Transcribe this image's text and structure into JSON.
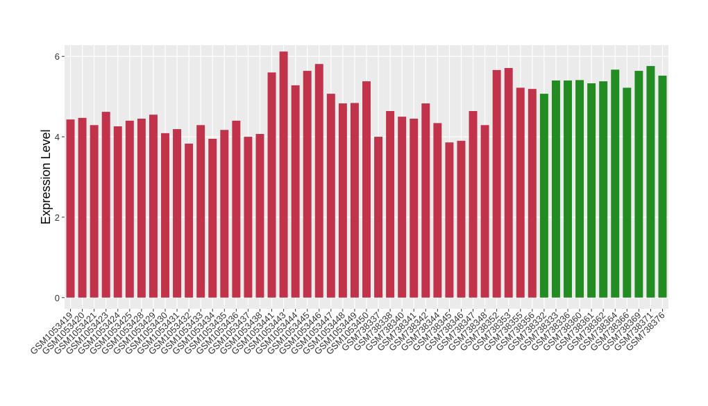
{
  "chart_data": {
    "type": "bar",
    "y_label": "Expression Level",
    "categories": [
      "GSM1053419",
      "GSM1053420",
      "GSM1053421",
      "GSM1053423",
      "GSM1053424",
      "GSM1053425",
      "GSM1053428",
      "GSM1053429",
      "GSM1053430",
      "GSM1053431",
      "GSM1053432",
      "GSM1053433",
      "GSM1053434",
      "GSM1053435",
      "GSM1053436",
      "GSM1053437",
      "GSM1053438",
      "GSM1053441",
      "GSM1053443",
      "GSM1053444",
      "GSM1053445",
      "GSM1053446",
      "GSM1053447",
      "GSM1053448",
      "GSM1053449",
      "GSM1053450",
      "GSM738337",
      "GSM738338",
      "GSM738340",
      "GSM738341",
      "GSM738342",
      "GSM738344",
      "GSM738345",
      "GSM738346",
      "GSM738347",
      "GSM738348",
      "GSM738352",
      "GSM738353",
      "GSM738355",
      "GSM738356",
      "GSM738332",
      "GSM738333",
      "GSM738336",
      "GSM738360",
      "GSM738361",
      "GSM738362",
      "GSM738364",
      "GSM738366",
      "GSM738369",
      "GSM738371",
      "GSM738376"
    ],
    "values": [
      4.43,
      4.47,
      4.29,
      4.62,
      4.26,
      4.4,
      4.45,
      4.55,
      4.09,
      4.19,
      3.83,
      4.29,
      3.95,
      4.17,
      4.4,
      4.0,
      4.07,
      5.6,
      6.12,
      5.28,
      5.64,
      5.81,
      5.07,
      4.83,
      4.84,
      5.38,
      4.0,
      4.64,
      4.5,
      4.45,
      4.83,
      4.34,
      3.86,
      3.9,
      4.64,
      4.29,
      5.66,
      5.71,
      5.22,
      5.19,
      5.07,
      5.4,
      5.4,
      5.41,
      5.33,
      5.38,
      5.67,
      5.22,
      5.64,
      5.76,
      5.52
    ],
    "colors": [
      "#c1334a",
      "#c1334a",
      "#c1334a",
      "#c1334a",
      "#c1334a",
      "#c1334a",
      "#c1334a",
      "#c1334a",
      "#c1334a",
      "#c1334a",
      "#c1334a",
      "#c1334a",
      "#c1334a",
      "#c1334a",
      "#c1334a",
      "#c1334a",
      "#c1334a",
      "#c1334a",
      "#c1334a",
      "#c1334a",
      "#c1334a",
      "#c1334a",
      "#c1334a",
      "#c1334a",
      "#c1334a",
      "#c1334a",
      "#c1334a",
      "#c1334a",
      "#c1334a",
      "#c1334a",
      "#c1334a",
      "#c1334a",
      "#c1334a",
      "#c1334a",
      "#c1334a",
      "#c1334a",
      "#c1334a",
      "#c1334a",
      "#c1334a",
      "#c1334a",
      "#228b22",
      "#228b22",
      "#228b22",
      "#228b22",
      "#228b22",
      "#228b22",
      "#228b22",
      "#228b22",
      "#228b22",
      "#228b22",
      "#228b22"
    ],
    "ylim": [
      -0.28,
      6.28
    ],
    "yticks": [
      0,
      2,
      4,
      6
    ],
    "grid": true
  }
}
